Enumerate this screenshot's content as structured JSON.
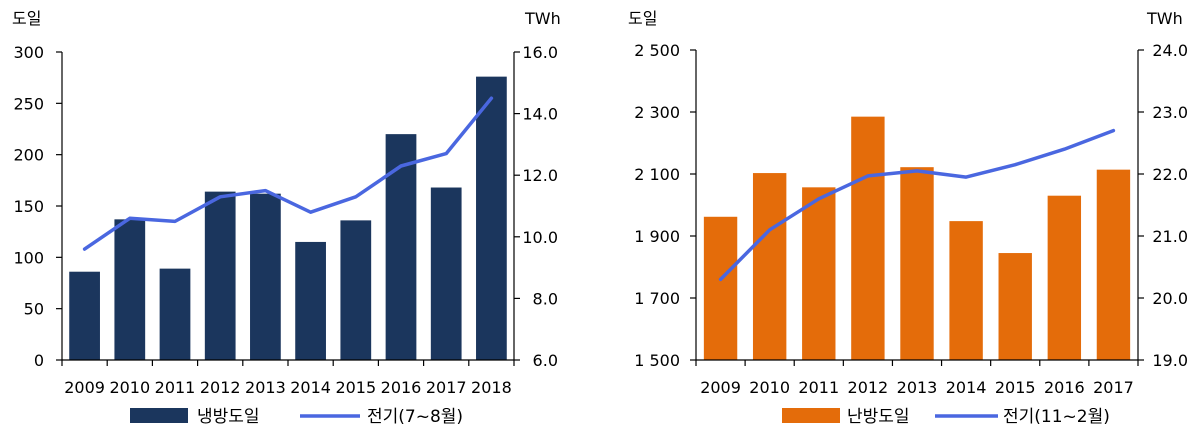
{
  "chart_data": [
    {
      "type": "bar+line",
      "left_unit": "도일",
      "right_unit": "TWh",
      "categories": [
        "2009",
        "2010",
        "2011",
        "2012",
        "2013",
        "2014",
        "2015",
        "2016",
        "2017",
        "2018"
      ],
      "left_ylim": [
        0,
        300
      ],
      "left_ticks": [
        "0",
        "50",
        "100",
        "150",
        "200",
        "250",
        "300"
      ],
      "left_tick_values": [
        0,
        50,
        100,
        150,
        200,
        250,
        300
      ],
      "right_ylim": [
        6,
        16
      ],
      "right_ticks": [
        "6.0",
        "8.0",
        "10.0",
        "12.0",
        "14.0",
        "16.0"
      ],
      "right_tick_values": [
        6,
        8,
        10,
        12,
        14,
        16
      ],
      "series": [
        {
          "name": "냉방도일",
          "type": "bar",
          "axis": "left",
          "color": "#1b365d",
          "values": [
            86,
            137,
            89,
            164,
            162,
            115,
            136,
            220,
            168,
            276
          ]
        },
        {
          "name": "전기(7~8월)",
          "type": "line",
          "axis": "right",
          "color": "#4a67e0",
          "values": [
            9.6,
            10.6,
            10.5,
            11.3,
            11.5,
            10.8,
            11.3,
            12.3,
            12.7,
            14.5
          ]
        }
      ],
      "legend_position": "bottom"
    },
    {
      "type": "bar+line",
      "left_unit": "도일",
      "right_unit": "TWh",
      "categories": [
        "2009",
        "2010",
        "2011",
        "2012",
        "2013",
        "2014",
        "2015",
        "2016",
        "2017"
      ],
      "left_ylim": [
        1500,
        2500
      ],
      "left_ticks": [
        "1 500",
        "1 700",
        "1 900",
        "2 100",
        "2 300",
        "2 500"
      ],
      "left_tick_values": [
        1500,
        1700,
        1900,
        2100,
        2300,
        2500
      ],
      "right_ylim": [
        19,
        24
      ],
      "right_ticks": [
        "19.0",
        "20.0",
        "21.0",
        "22.0",
        "23.0",
        "24.0"
      ],
      "right_tick_values": [
        19,
        20,
        21,
        22,
        23,
        24
      ],
      "series": [
        {
          "name": "난방도일",
          "type": "bar",
          "axis": "left",
          "color": "#e46c0a",
          "values": [
            1962,
            2103,
            2057,
            2285,
            2122,
            1948,
            1845,
            2030,
            2114
          ]
        },
        {
          "name": "전기(11~2월)",
          "type": "line",
          "axis": "right",
          "color": "#4a67e0",
          "values": [
            20.3,
            21.1,
            21.6,
            21.97,
            22.05,
            21.95,
            22.15,
            22.4,
            22.7
          ]
        }
      ],
      "legend_position": "bottom"
    }
  ]
}
